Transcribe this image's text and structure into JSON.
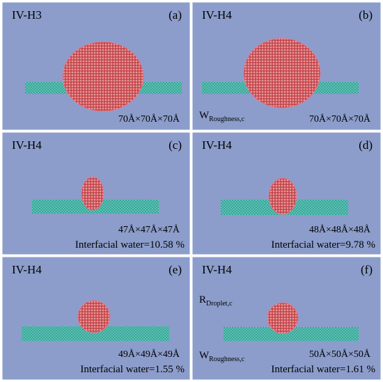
{
  "panels": [
    {
      "title": "IV-H3",
      "tag": "(a)",
      "size": "70Å×70Å×70Å",
      "annotations": []
    },
    {
      "title": "IV-H4",
      "tag": "(b)",
      "size": "70Å×70Å×70Å",
      "annotations": [
        {
          "main": "W",
          "sub": "Roughness,c"
        }
      ]
    },
    {
      "title": "IV-H4",
      "tag": "(c)",
      "size": "47Å×47Å×47Å",
      "water": "Interfacial water=10.58 %",
      "annotations": []
    },
    {
      "title": "IV-H4",
      "tag": "(d)",
      "size": "48Å×48Å×48Å",
      "water": "Interfacial water=9.78 %",
      "annotations": []
    },
    {
      "title": "IV-H4",
      "tag": "(e)",
      "size": "49Å×49Å×49Å",
      "water": "Interfacial water=1.55 %",
      "annotations": []
    },
    {
      "title": "IV-H4",
      "tag": "(f)",
      "size": "50Å×50Å×50Å",
      "water": "Interfacial water=1.61 %",
      "annotations": [
        {
          "main": "R",
          "sub": "Droplet,c"
        },
        {
          "main": "W",
          "sub": "Roughness,c"
        }
      ]
    }
  ]
}
